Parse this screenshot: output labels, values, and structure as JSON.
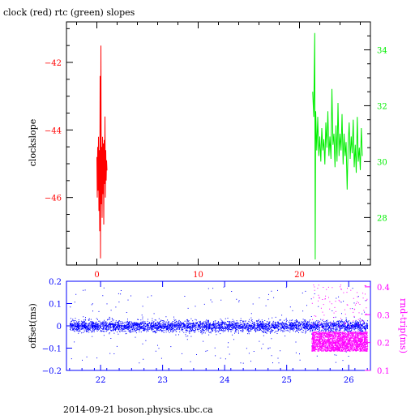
{
  "figure": {
    "title": "clock (red) rtc (green) slopes",
    "footer": "2014-09-21 boson.physics.ubc.ca"
  },
  "chart_data": [
    {
      "type": "line",
      "name": "slopes",
      "x_range": [
        -3,
        27
      ],
      "x_ticks": [
        0,
        10,
        20
      ],
      "left_axis": {
        "label": "clockslope",
        "range": [
          -48,
          -40.8
        ],
        "ticks": [
          -42,
          -44,
          -46
        ],
        "color": "#ff0000"
      },
      "right_axis": {
        "label": "",
        "range": [
          26.3,
          35
        ],
        "ticks": [
          28,
          30,
          32,
          34
        ],
        "color": "#00ee00"
      },
      "series": [
        {
          "name": "clock",
          "axis": "left",
          "color": "#ff0000",
          "x": [
            0,
            0.04,
            0.08,
            0.12,
            0.16,
            0.2,
            0.24,
            0.28,
            0.32,
            0.36,
            0.4,
            0.44,
            0.48,
            0.52,
            0.56,
            0.6,
            0.64,
            0.68,
            0.72,
            0.76,
            0.8,
            0.84,
            0.88,
            0.92,
            0.96,
            1.0
          ],
          "y": [
            -44.8,
            -46,
            -44.5,
            -45.8,
            -44.2,
            -46.4,
            -44.6,
            -47,
            -42.4,
            -47.8,
            -41.5,
            -46.2,
            -44.5,
            -46.6,
            -44.2,
            -45.9,
            -44.4,
            -46.8,
            -44.3,
            -45.6,
            -43.6,
            -46,
            -44.6,
            -45.5,
            -44.9,
            -45.2
          ]
        },
        {
          "name": "rtc",
          "axis": "right",
          "color": "#00ee00",
          "x": [
            21.3,
            21.4,
            21.5,
            21.55,
            21.6,
            21.7,
            21.8,
            21.9,
            22.0,
            22.1,
            22.2,
            22.3,
            22.4,
            22.5,
            22.6,
            22.7,
            22.8,
            22.9,
            23.0,
            23.1,
            23.2,
            23.3,
            23.4,
            23.5,
            23.6,
            23.7,
            23.8,
            23.9,
            24.0,
            24.1,
            24.2,
            24.3,
            24.4,
            24.5,
            24.6,
            24.7,
            24.8,
            24.9,
            25.0,
            25.1,
            25.2,
            25.3,
            25.4,
            25.5,
            25.6,
            25.7,
            25.8,
            25.9,
            26.0,
            26.1,
            26.2
          ],
          "y": [
            32.5,
            31.6,
            34.6,
            26.5,
            31.8,
            30.4,
            31.6,
            30.2,
            30.9,
            30.0,
            31.2,
            30.4,
            30.8,
            29.9,
            31.4,
            30.5,
            31.8,
            30.2,
            30.9,
            30.1,
            32.6,
            30.6,
            31.0,
            29.8,
            31.3,
            30.0,
            32.1,
            30.2,
            31.0,
            30.4,
            31.7,
            29.9,
            31.0,
            30.2,
            30.7,
            29.0,
            30.6,
            31.4,
            30.1,
            30.9,
            30.3,
            31.5,
            29.8,
            30.6,
            29.6,
            31.6,
            30.0,
            30.5,
            29.7,
            31.2,
            30.2
          ]
        }
      ]
    },
    {
      "type": "scatter",
      "name": "offsets",
      "x_range": [
        21.45,
        26.35
      ],
      "x_ticks": [
        22,
        23,
        24,
        25,
        26
      ],
      "left_axis": {
        "label": "offset(ms)",
        "range": [
          -0.2,
          0.2
        ],
        "ticks": [
          -0.2,
          -0.1,
          0,
          0.1,
          0.2
        ],
        "color": "#0000ff"
      },
      "right_axis": {
        "label": "rnd-trip(ms)",
        "range": [
          0.1,
          0.42
        ],
        "ticks": [
          0.1,
          0.2,
          0.3,
          0.4
        ],
        "color": "#ff00ff"
      },
      "series": [
        {
          "name": "offset",
          "axis": "left",
          "color": "#0000ff",
          "x_span": [
            21.5,
            26.3
          ],
          "mean": 0.0,
          "band_halfwidth": 0.025,
          "outlier_range": [
            -0.17,
            0.18
          ],
          "point_count": 6500
        },
        {
          "name": "rnd-trip",
          "axis": "right",
          "color": "#ff00ff",
          "x_span": [
            25.4,
            26.3
          ],
          "band": [
            0.17,
            0.24
          ],
          "outlier_range": [
            0.25,
            0.41
          ],
          "point_count": 2500
        }
      ]
    }
  ]
}
